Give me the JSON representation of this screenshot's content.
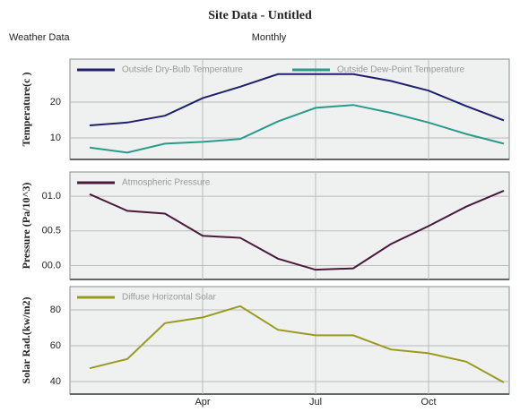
{
  "header": {
    "title": "Site Data - Untitled",
    "left": "Weather Data",
    "center": "Monthly"
  },
  "chart_data": [
    {
      "type": "line",
      "y_label": "Temperature(c )",
      "ylim": [
        4,
        32
      ],
      "yticks": [
        10,
        20
      ],
      "grid": true,
      "series": [
        {
          "name": "Outside Dry-Bulb Temperature",
          "color": "#1f1f6e",
          "values": [
            13.5,
            14.3,
            16.2,
            21.1,
            24.3,
            27.8,
            27.8,
            27.8,
            25.9,
            23.2,
            18.9,
            14.9
          ]
        },
        {
          "name": "Outside Dew-Point Temperature",
          "color": "#2a9a8a",
          "values": [
            7.3,
            5.9,
            8.4,
            8.9,
            9.7,
            14.6,
            18.4,
            19.2,
            17.0,
            14.3,
            11.1,
            8.4
          ]
        }
      ]
    },
    {
      "type": "line",
      "y_label": "Pressure (Pa/10^3)",
      "ylim": [
        -0.2,
        1.35
      ],
      "yticks": [
        {
          "value": 0,
          "label": "00.0"
        },
        {
          "value": 0.5,
          "label": "00.5"
        },
        {
          "value": 1,
          "label": "01.0"
        }
      ],
      "grid": true,
      "series": [
        {
          "name": "Atmospheric Pressure",
          "color": "#4a1a3a",
          "values": [
            1.03,
            0.79,
            0.75,
            0.43,
            0.4,
            0.1,
            -0.06,
            -0.04,
            0.31,
            0.57,
            0.85,
            1.08
          ]
        }
      ]
    },
    {
      "type": "line",
      "y_label": "Solar Rad.(kw/m2)",
      "ylim": [
        33,
        93
      ],
      "yticks": [
        40,
        60,
        80
      ],
      "grid": true,
      "categories": [
        null,
        null,
        null,
        "Apr",
        null,
        null,
        "Jul",
        null,
        null,
        "Oct",
        null,
        null
      ],
      "series": [
        {
          "name": "Diffuse Horizontal Solar",
          "color": "#9a9a20",
          "values": [
            47.4,
            52.6,
            72.6,
            75.8,
            82.1,
            68.9,
            65.8,
            65.8,
            57.9,
            55.8,
            51.1,
            39.5
          ]
        }
      ]
    }
  ]
}
